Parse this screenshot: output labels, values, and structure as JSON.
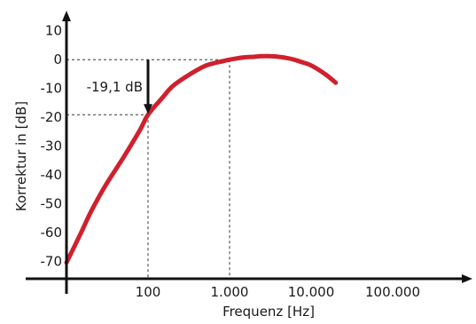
{
  "chart_data": {
    "type": "line",
    "title": "",
    "xlabel": "Frequenz [Hz]",
    "ylabel": "Korrektur in [dB]",
    "x_scale": "log",
    "xlim": [
      10,
      1000000
    ],
    "ylim": [
      -76,
      17
    ],
    "x_ticks": [
      {
        "value": 100,
        "label": "100"
      },
      {
        "value": 1000,
        "label": "1.000"
      },
      {
        "value": 10000,
        "label": "10.000"
      },
      {
        "value": 100000,
        "label": "100.000"
      }
    ],
    "y_ticks": [
      {
        "value": 10,
        "label": "10"
      },
      {
        "value": 0,
        "label": "0"
      },
      {
        "value": -10,
        "label": "-10"
      },
      {
        "value": -20,
        "label": "-20"
      },
      {
        "value": -30,
        "label": "-30"
      },
      {
        "value": -40,
        "label": "-40"
      },
      {
        "value": -50,
        "label": "-50"
      },
      {
        "value": -60,
        "label": "-60"
      },
      {
        "value": -70,
        "label": "-70"
      }
    ],
    "grid": false,
    "legend": "none",
    "series": [
      {
        "color": "#d0202e",
        "x": [
          10,
          15,
          20,
          30,
          50,
          80,
          100,
          150,
          200,
          300,
          500,
          800,
          1000,
          1500,
          2000,
          2500,
          3000,
          4000,
          5000,
          6000,
          8000,
          10000,
          15000,
          20000
        ],
        "y": [
          -70.4,
          -60.2,
          -52.7,
          -43.7,
          -33.9,
          -24.3,
          -19.1,
          -13.2,
          -9.2,
          -5.7,
          -2.2,
          -0.6,
          0.0,
          0.8,
          1.0,
          1.2,
          1.2,
          1.0,
          0.6,
          0.1,
          -1.0,
          -2.0,
          -5.1,
          -8.0
        ]
      }
    ],
    "annotations": [
      {
        "text": "-19,1 dB",
        "x": 100,
        "y_from": 0,
        "y_to": -19.1
      }
    ],
    "guides": [
      {
        "x": 100,
        "y": -19.1
      },
      {
        "x": 1000,
        "y": 0
      }
    ]
  }
}
